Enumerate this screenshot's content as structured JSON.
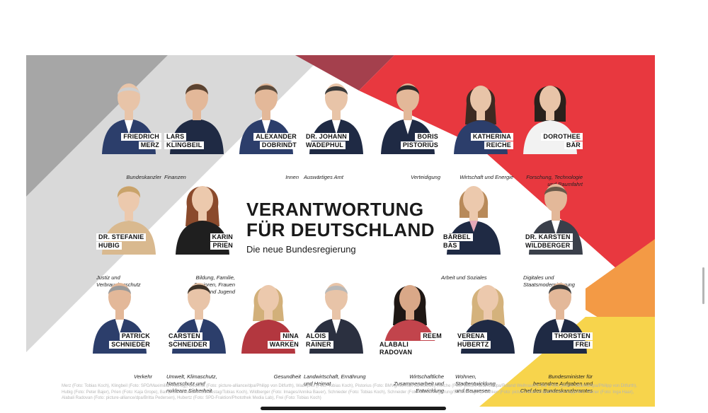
{
  "poster": {
    "headline_line1": "VERANTWORTUNG",
    "headline_line2": "FÜR DEUTSCHLAND",
    "subtitle": "Die neue Bundesregierung",
    "credits": "Merz (Foto: Tobias Koch), Klingbeil (Foto: SPD/Maximilian Koenig), Dobrindt (Foto: picture-alliance/dpa/Philipp von Ditfurth), Wadephul (Foto: Tobias Koch), Pistorius (Foto: BMVg/Norman Jankowski), Reiche (Foto: picture-alliance/dpa/Roland Weihrauch), Bär (Foto: picture-alliance/dpa/Philipp von Ditfurth), Hubig (Foto: Peter Bajer), Prien (Foto: Kaja Grope), Bas (Foto: Deutscher Bundestag/Tobias Koch), Wildberger (Foto: Images/Annika Bauer), Schnieder (Foto: Tobias Koch), Schneider (Foto: Bundesregierung/Steffen Kugler), Warken (Foto: picture-alliance/dpa/Michael Kappeler), Rainer (Foto: Inga Haar), Alabali Radovan (Foto: picture-alliance/dpa/Britta Pedersen), Hubertz (Foto: SPD-Fraktion/Photothek Media Lab), Frei (Foto: Tobias Koch)"
  },
  "colors": {
    "gray_dark": "#a6a6a6",
    "gray_light": "#d9d9d9",
    "maroon": "#a4404d",
    "red": "#e8383f",
    "orange": "#f39a45",
    "yellow": "#f7d44c",
    "suit_dark": "#1f2a44",
    "suit_navy": "#2c3e6b"
  },
  "ministers": [
    {
      "line1": "FRIEDRICH",
      "line2": "MERZ",
      "role": "Bundeskanzler"
    },
    {
      "line1": "LARS",
      "line2": "KLINGBEIL",
      "role": "Finanzen"
    },
    {
      "line1": "ALEXANDER",
      "line2": "DOBRINDT",
      "role": "Innen"
    },
    {
      "line1": "DR. JOHANN",
      "line2": "WADEPHUL",
      "role": "Auswärtiges Amt"
    },
    {
      "line1": "BORIS",
      "line2": "PISTORIUS",
      "role": "Verteidigung"
    },
    {
      "line1": "KATHERINA",
      "line2": "REICHE",
      "role": "Wirtschaft und Energie"
    },
    {
      "line1": "DOROTHEE",
      "line2": "BÄR",
      "role_l1": "Forschung, Technologie",
      "role_l2": "und Raumfahrt"
    },
    {
      "line1": "DR. STEFANIE",
      "line2": "HUBIG",
      "role_l1": "Justiz und",
      "role_l2": "Verbraucherschutz"
    },
    {
      "line1": "KARIN",
      "line2": "PRIEN",
      "role_l1": "Bildung, Familie,",
      "role_l2": "Senioren, Frauen",
      "role_l3": "und Jugend"
    },
    {
      "line1": "BÄRBEL",
      "line2": "BAS",
      "role": "Arbeit und Soziales"
    },
    {
      "line1": "DR. KARSTEN",
      "line2": "WILDBERGER",
      "role_l1": "Digitales und",
      "role_l2": "Staatsmodernisierung"
    },
    {
      "line1": "PATRICK",
      "line2": "SCHNIEDER",
      "role": "Verkehr"
    },
    {
      "line1": "CARSTEN",
      "line2": "SCHNEIDER",
      "role_l1": "Umwelt, Klimaschutz,",
      "role_l2": "Naturschutz und",
      "role_l3": "nukleare Sicherheit"
    },
    {
      "line1": "NINA",
      "line2": "WARKEN",
      "role": "Gesundheit"
    },
    {
      "line1": "ALOIS",
      "line2": "RAINER",
      "role_l1": "Landwirtschaft, Ernährung",
      "role_l2": "und Heimat"
    },
    {
      "line1": "REEM",
      "line2": "ALABALI RADOVAN",
      "role_l1": "Wirtschaftliche",
      "role_l2": "Zusammenarbeit und",
      "role_l3": "Entwicklung"
    },
    {
      "line1": "VERENA",
      "line2": "HUBERTZ",
      "role_l1": "Wohnen,",
      "role_l2": "Stadtentwicklung",
      "role_l3": "und Bauwesen"
    },
    {
      "line1": "THORSTEN",
      "line2": "FREI",
      "role_l1": "Bundesminister für",
      "role_l2": "besondere Aufgaben und",
      "role_l3": "Chef des Bundeskanzleramtes"
    }
  ]
}
